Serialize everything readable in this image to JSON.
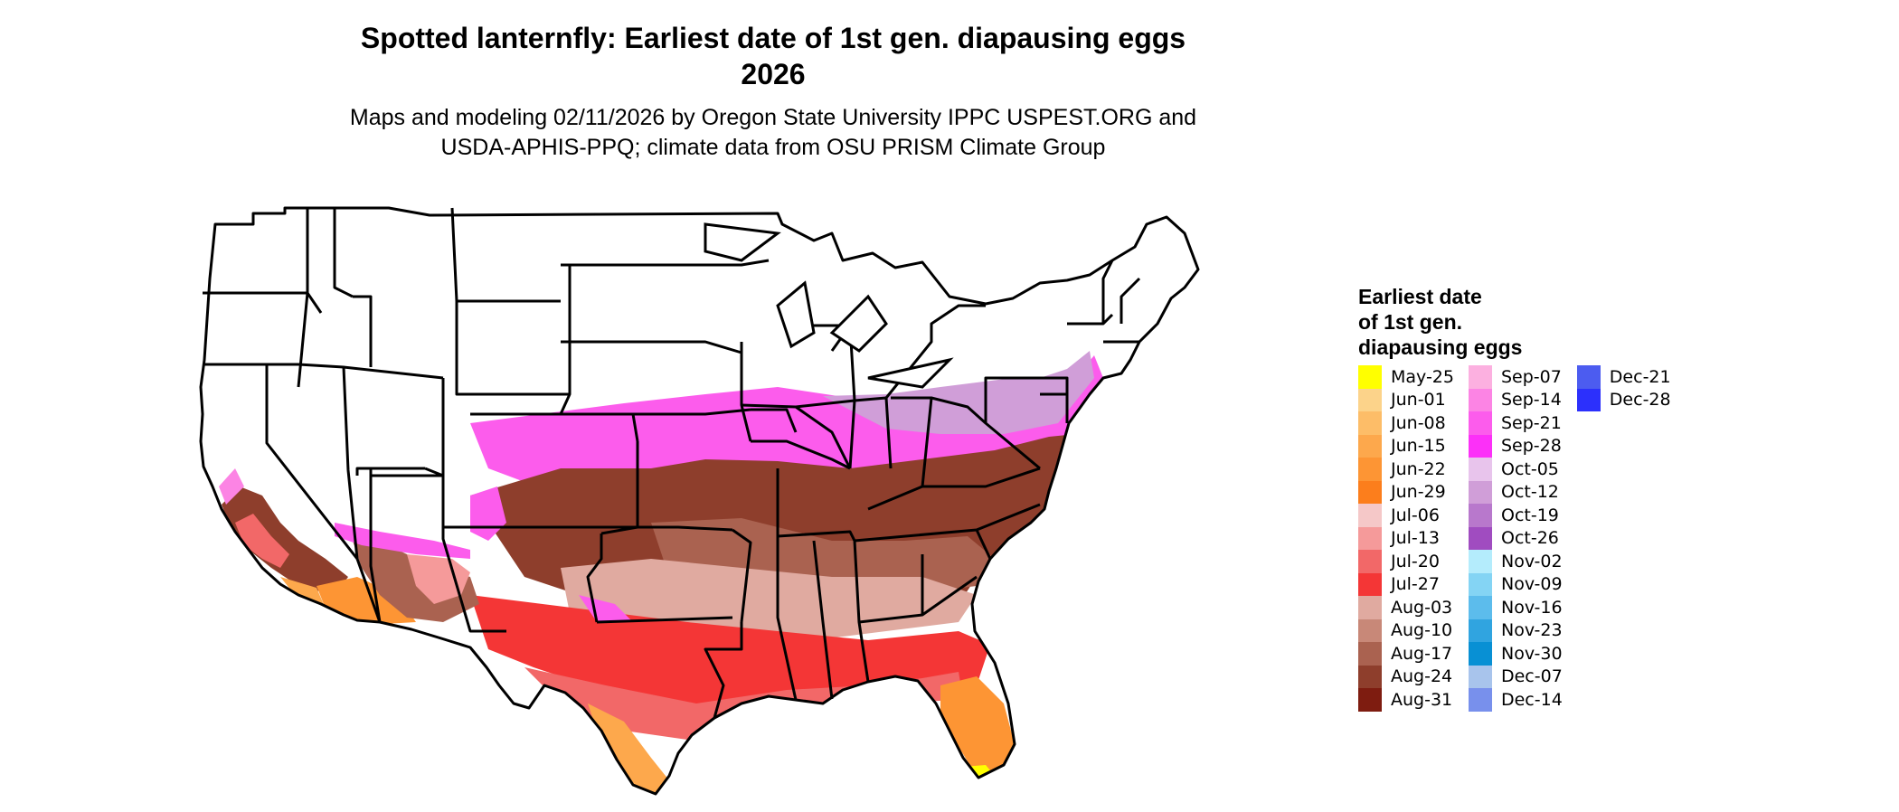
{
  "title": {
    "line1": "Spotted lanternfly: Earliest date of 1st gen. diapausing eggs",
    "line2": "2026",
    "subtitle_line1": "Maps and modeling 02/11/2026 by Oregon State University IPPC USPEST.ORG and",
    "subtitle_line2": "USDA-APHIS-PPQ; climate data from OSU PRISM Climate Group"
  },
  "map": {
    "description_type": "choropleth",
    "region": "Contiguous United States",
    "uncolored_color": "#ffffff",
    "state_border_color": "#000000"
  },
  "legend": {
    "title_line1": "Earliest date",
    "title_line2": "of 1st gen.",
    "title_line3": "diapausing eggs",
    "columns": [
      [
        {
          "label": "May-25",
          "color": "#ffff00"
        },
        {
          "label": "Jun-01",
          "color": "#fcd38a"
        },
        {
          "label": "Jun-08",
          "color": "#fdbd68"
        },
        {
          "label": "Jun-15",
          "color": "#fda84c"
        },
        {
          "label": "Jun-22",
          "color": "#fd9534"
        },
        {
          "label": "Jun-29",
          "color": "#fc7e1c"
        },
        {
          "label": "Jul-06",
          "color": "#f5c8c8"
        },
        {
          "label": "Jul-13",
          "color": "#f59a9a"
        },
        {
          "label": "Jul-20",
          "color": "#f26868"
        },
        {
          "label": "Jul-27",
          "color": "#f43636"
        },
        {
          "label": "Aug-03",
          "color": "#e0aaa0"
        },
        {
          "label": "Aug-10",
          "color": "#c88878"
        },
        {
          "label": "Aug-17",
          "color": "#aa6250"
        },
        {
          "label": "Aug-24",
          "color": "#8e3e2c"
        },
        {
          "label": "Aug-31",
          "color": "#7e1c10"
        }
      ],
      [
        {
          "label": "Sep-07",
          "color": "#fcb0e0"
        },
        {
          "label": "Sep-14",
          "color": "#fc84e4"
        },
        {
          "label": "Sep-21",
          "color": "#fc5cec"
        },
        {
          "label": "Sep-28",
          "color": "#fc30f8"
        },
        {
          "label": "Oct-05",
          "color": "#e8c4ec"
        },
        {
          "label": "Oct-12",
          "color": "#d09ed8"
        },
        {
          "label": "Oct-19",
          "color": "#b878cc"
        },
        {
          "label": "Oct-26",
          "color": "#a04cc0"
        },
        {
          "label": "Nov-02",
          "color": "#b4ecfc"
        },
        {
          "label": "Nov-09",
          "color": "#84d4f4"
        },
        {
          "label": "Nov-16",
          "color": "#5cbcec"
        },
        {
          "label": "Nov-23",
          "color": "#30a4e0"
        },
        {
          "label": "Nov-30",
          "color": "#0890d4"
        },
        {
          "label": "Dec-07",
          "color": "#a8c4ec"
        },
        {
          "label": "Dec-14",
          "color": "#7890ec"
        }
      ],
      [
        {
          "label": "Dec-21",
          "color": "#4c5cf0"
        },
        {
          "label": "Dec-28",
          "color": "#2c30fc"
        }
      ]
    ]
  }
}
